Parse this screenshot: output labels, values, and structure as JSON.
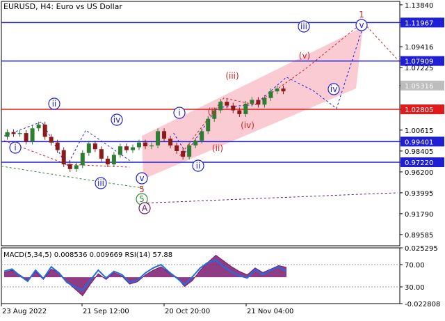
{
  "header": {
    "symbol_timeframe": "EURUSD, H4:",
    "description": "Euro vs US Dollar"
  },
  "macd_header": "MACD(5,34,5) 0.008536 0.009669 RSI(14) 57.88",
  "colors": {
    "blue_line": "#1f1fd6",
    "red_line": "#e01b1b",
    "channel": "#f9a8b8",
    "candle_up": "#2e7d32",
    "candle_down": "#8b1a1a",
    "wave_blue": "#1f1fd6",
    "wave_red": "#d62020",
    "wave_green": "#2e8b2e",
    "wave_purple": "#6a1b6a",
    "tag_blue": "#1f1fd6",
    "tag_red": "#e01b1b",
    "tag_gray": "#bdbdbd",
    "macd_fill": "#7a1a6e",
    "macd_blue": "#1e6fe0"
  },
  "chart_data": [
    {
      "type": "line",
      "title": "EURUSD, H4: Euro vs US Dollar",
      "x_tick_labels": [
        "23 Aug 2022",
        "21 Sep 12:00",
        "20 Oct 20:00",
        "21 Nov 04:00"
      ],
      "y_axis_labels": [
        "1.13840",
        "1.11967",
        "1.09416",
        "1.07909",
        "1.07225",
        "1.05316",
        "1.02805",
        "1.00615",
        "0.99401",
        "0.98405",
        "0.97220",
        "0.96200",
        "0.93995",
        "0.91790",
        "0.89585"
      ],
      "ylim": [
        0.884,
        1.142
      ],
      "x_range": [
        "23 Aug 2022",
        "21 Nov 04:00"
      ],
      "grid": false,
      "series": [
        {
          "values": [
            0.999,
            1.004,
            1.002,
            1.003,
            0.994,
            1.008,
            1.012,
            0.999,
            0.993,
            0.985,
            0.97,
            0.965,
            0.969,
            0.982,
            0.992,
            0.986,
            0.976,
            0.97,
            0.98,
            0.989,
            0.985,
            0.988,
            0.993,
            0.989,
            0.99,
            1.005,
            0.997,
            0.99,
            0.984,
            0.978,
            0.99,
            0.995,
            1.005,
            1.018,
            1.027,
            1.036,
            1.032,
            1.027,
            1.023,
            1.034,
            1.038,
            1.033,
            1.04,
            1.047,
            1.05,
            1.047
          ]
        }
      ],
      "horizontal_levels": [
        {
          "value": 1.11967,
          "color": "blue"
        },
        {
          "value": 1.07909,
          "color": "blue"
        },
        {
          "value": 1.02805,
          "color": "red"
        },
        {
          "value": 0.99401,
          "color": "blue"
        },
        {
          "value": 0.9722,
          "color": "blue"
        }
      ],
      "price_tags": [
        {
          "value": 1.11967,
          "label": "1.11967",
          "color": "blue"
        },
        {
          "value": 1.07909,
          "label": "1.07909",
          "color": "blue"
        },
        {
          "value": 1.05316,
          "label": "1.05316",
          "color": "gray"
        },
        {
          "value": 1.02805,
          "label": "1.02805",
          "color": "red"
        },
        {
          "value": 0.99401,
          "label": "0.99401",
          "color": "blue"
        },
        {
          "value": 0.9722,
          "label": "0.97220",
          "color": "blue"
        }
      ],
      "wave_labels": [
        {
          "label": "i",
          "style": "circle",
          "color": "blue"
        },
        {
          "label": "ii",
          "style": "circle",
          "color": "blue"
        },
        {
          "label": "iii",
          "style": "circle",
          "color": "blue"
        },
        {
          "label": "iv",
          "style": "circle",
          "color": "blue"
        },
        {
          "label": "v",
          "style": "circle",
          "color": "blue"
        },
        {
          "label": "5",
          "style": "circle",
          "color": "green"
        },
        {
          "label": "A",
          "style": "circle",
          "color": "purple"
        },
        {
          "label": "i",
          "style": "circle",
          "color": "blue"
        },
        {
          "label": "ii",
          "style": "circle",
          "color": "blue"
        },
        {
          "label": "iii",
          "style": "circle",
          "color": "blue"
        },
        {
          "label": "iv",
          "style": "circle",
          "color": "blue"
        },
        {
          "label": "v",
          "style": "circle",
          "color": "blue"
        },
        {
          "label": "5",
          "style": "plain",
          "color": "red"
        },
        {
          "label": "(i)",
          "style": "plain",
          "color": "red"
        },
        {
          "label": "(ii)",
          "style": "plain",
          "color": "red"
        },
        {
          "label": "(iii)",
          "style": "plain",
          "color": "red"
        },
        {
          "label": "(iv)",
          "style": "plain",
          "color": "red"
        },
        {
          "label": "(v)",
          "style": "plain",
          "color": "red"
        },
        {
          "label": "1",
          "style": "plain",
          "color": "red"
        }
      ]
    },
    {
      "type": "area",
      "title": "MACD(5,34,5) 0.008536 0.009669 RSI(14) 57.88",
      "y_axis_labels": [
        "0.025295",
        "70.00",
        "30.00",
        "-0.022808"
      ],
      "ylim": [
        -0.0228,
        0.0253
      ],
      "rsi_levels": [
        70,
        30
      ],
      "series": [
        {
          "name": "MACD",
          "values": [
            0.004,
            0.006,
            0.002,
            -0.003,
            0.005,
            -0.002,
            0.007,
            0.004,
            -0.004,
            -0.01,
            -0.016,
            -0.006,
            0.003,
            -0.002,
            0.004,
            0.001,
            -0.006,
            -0.004,
            0.002,
            0.006,
            0.009,
            0.004,
            0.0,
            -0.008,
            -0.003,
            0.006,
            0.013,
            0.019,
            0.014,
            0.009,
            0.005,
            0.002,
            0.008,
            0.004,
            0.007,
            0.01,
            0.0085
          ]
        },
        {
          "name": "RSI",
          "values": [
            58,
            62,
            50,
            40,
            60,
            45,
            66,
            55,
            38,
            30,
            24,
            42,
            60,
            46,
            58,
            52,
            38,
            42,
            55,
            64,
            70,
            57,
            46,
            34,
            48,
            64,
            74,
            78,
            66,
            57,
            50,
            46,
            61,
            52,
            60,
            66,
            57.88
          ]
        }
      ]
    }
  ]
}
